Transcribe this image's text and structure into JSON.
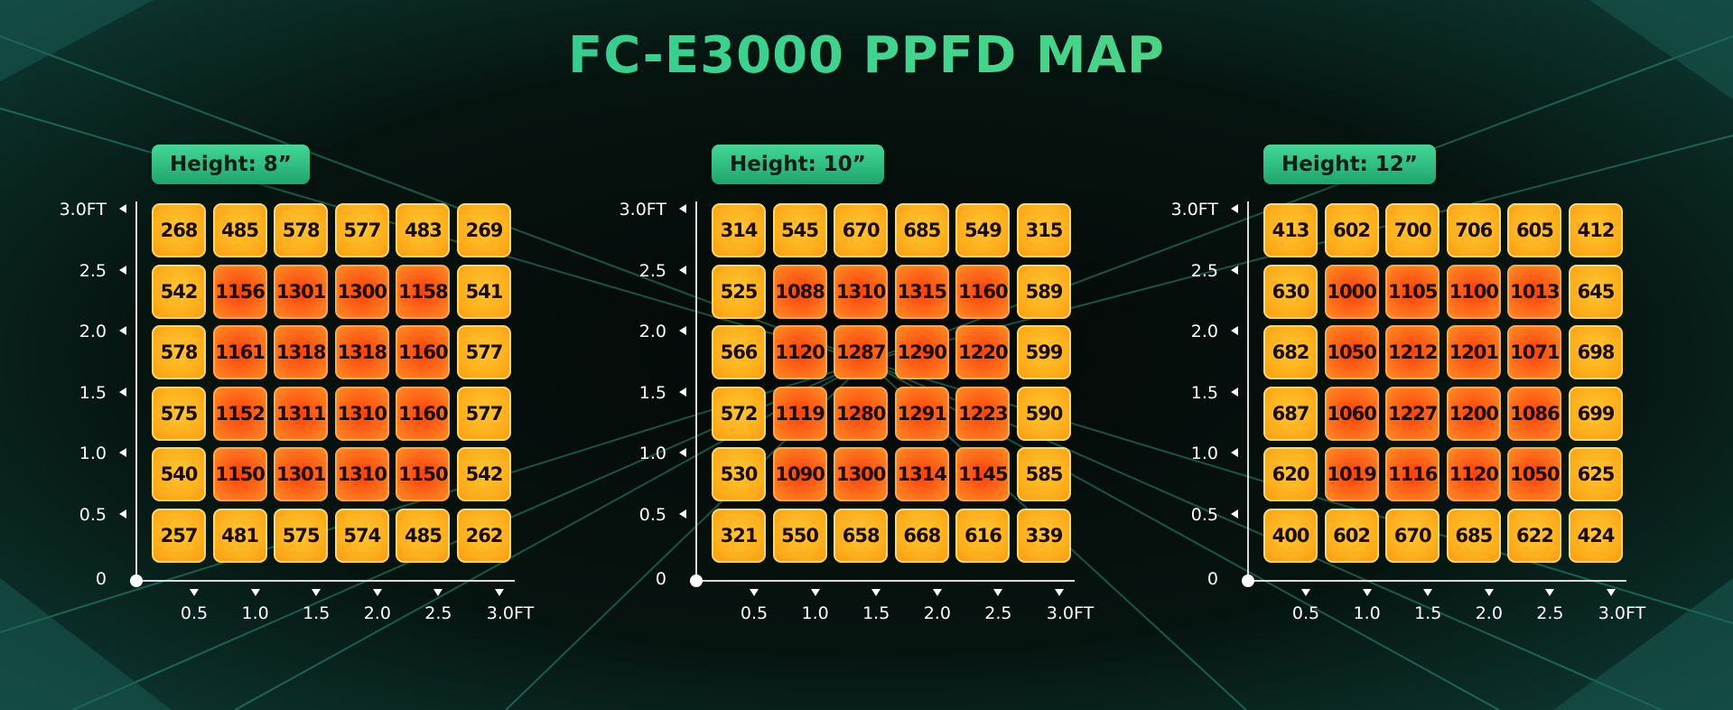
{
  "page": {
    "title": "FC-E3000 PPFD MAP"
  },
  "colors": {
    "title": "#3fd58f",
    "badge": "#2bbf7e",
    "outer_cell": "#ffb21e",
    "inner_cell": "#ff4a10",
    "axis": "#d8dcda"
  },
  "chart_data": [
    {
      "type": "heatmap",
      "title": "Height: 8”",
      "y_ticks": [
        "3.0FT",
        "2.5",
        "2.0",
        "1.5",
        "1.0",
        "0.5",
        "0"
      ],
      "x_ticks": [
        "0.5",
        "1.0",
        "1.5",
        "2.0",
        "2.5",
        "3.0FT"
      ],
      "rows": [
        [
          268,
          485,
          578,
          577,
          483,
          269
        ],
        [
          542,
          1156,
          1301,
          1300,
          1158,
          541
        ],
        [
          578,
          1161,
          1318,
          1318,
          1160,
          577
        ],
        [
          575,
          1152,
          1311,
          1310,
          1160,
          577
        ],
        [
          540,
          1150,
          1301,
          1310,
          1150,
          542
        ],
        [
          257,
          481,
          575,
          574,
          485,
          262
        ]
      ]
    },
    {
      "type": "heatmap",
      "title": "Height: 10”",
      "y_ticks": [
        "3.0FT",
        "2.5",
        "2.0",
        "1.5",
        "1.0",
        "0.5",
        "0"
      ],
      "x_ticks": [
        "0.5",
        "1.0",
        "1.5",
        "2.0",
        "2.5",
        "3.0FT"
      ],
      "rows": [
        [
          314,
          545,
          670,
          685,
          549,
          315
        ],
        [
          525,
          1088,
          1310,
          1315,
          1160,
          589
        ],
        [
          566,
          1120,
          1287,
          1290,
          1220,
          599
        ],
        [
          572,
          1119,
          1280,
          1291,
          1223,
          590
        ],
        [
          530,
          1090,
          1300,
          1314,
          1145,
          585
        ],
        [
          321,
          550,
          658,
          668,
          616,
          339
        ]
      ]
    },
    {
      "type": "heatmap",
      "title": "Height: 12”",
      "y_ticks": [
        "3.0FT",
        "2.5",
        "2.0",
        "1.5",
        "1.0",
        "0.5",
        "0"
      ],
      "x_ticks": [
        "0.5",
        "1.0",
        "1.5",
        "2.0",
        "2.5",
        "3.0FT"
      ],
      "rows": [
        [
          413,
          602,
          700,
          706,
          605,
          412
        ],
        [
          630,
          1000,
          1105,
          1100,
          1013,
          645
        ],
        [
          682,
          1050,
          1212,
          1201,
          1071,
          698
        ],
        [
          687,
          1060,
          1227,
          1200,
          1086,
          699
        ],
        [
          620,
          1019,
          1116,
          1120,
          1050,
          625
        ],
        [
          400,
          602,
          670,
          685,
          622,
          424
        ]
      ]
    }
  ]
}
